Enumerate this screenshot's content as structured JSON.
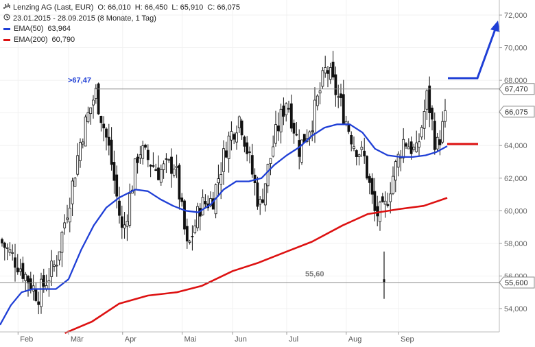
{
  "header": {
    "line1": {
      "name": "Lenzing AG (Last, EUR)",
      "O": "O: 66,010",
      "H": "H: 66,450",
      "L": "L: 65,910",
      "C": "C: 66,075"
    },
    "line2": "23.01.2015 - 28.09.2015 (8 Monate, 1 Tag)",
    "ema50_label": "EMA(50)",
    "ema50_value": "63,964",
    "ema200_label": "EMA(200)",
    "ema200_value": "60,790"
  },
  "colors": {
    "ema50": "#1f3fd6",
    "ema200": "#dd1111",
    "candle": "#111111",
    "resistance_label": "#1f3fd6",
    "support_label": "#777777"
  },
  "chart_data": {
    "type": "candlestick",
    "xlabel": "",
    "ylabel": "",
    "x_range": [
      "2015-01-23",
      "2015-09-28"
    ],
    "ylim": [
      52.6,
      72.9
    ],
    "y_ticks": [
      "72,000",
      "70,000",
      "68,000",
      "66,000",
      "64,000",
      "62,000",
      "60,000",
      "58,000",
      "56,000",
      "54,000"
    ],
    "y_tick_values": [
      72,
      70,
      68,
      66,
      64,
      62,
      60,
      58,
      56,
      54
    ],
    "x_ticks": [
      "Feb",
      "Mär",
      "Apr",
      "Mai",
      "Jun",
      "Jul",
      "Aug",
      "Sep"
    ],
    "x_tick_dates": [
      "2015-02-02",
      "2015-03-02",
      "2015-04-01",
      "2015-05-04",
      "2015-06-01",
      "2015-07-01",
      "2015-08-03",
      "2015-09-01"
    ],
    "last_close": {
      "value": 66.075,
      "label": "66,075"
    },
    "levels": [
      {
        "value": 67.47,
        "label": ">67,47",
        "tag": "67,470"
      },
      {
        "value": 55.6,
        "label": "55,60",
        "tag": "55,600"
      }
    ],
    "ohlc_anchors": {
      "dates": [
        "2015-01-23",
        "2015-02-03",
        "2015-02-13",
        "2015-02-23",
        "2015-03-04",
        "2015-03-09",
        "2015-03-17",
        "2015-03-25",
        "2015-04-01",
        "2015-04-10",
        "2015-04-21",
        "2015-04-30",
        "2015-05-07",
        "2015-05-14",
        "2015-05-21",
        "2015-05-29",
        "2015-06-05",
        "2015-06-16",
        "2015-06-24",
        "2015-07-01",
        "2015-07-08",
        "2015-07-15",
        "2015-07-23",
        "2015-07-30",
        "2015-08-07",
        "2015-08-13",
        "2015-08-19",
        "2015-08-24",
        "2015-08-28",
        "2015-09-04",
        "2015-09-11",
        "2015-09-17",
        "2015-09-22",
        "2015-09-28"
      ],
      "closes": [
        58.2,
        56.6,
        54.8,
        56.8,
        61.5,
        64.5,
        67.3,
        63.5,
        58.5,
        63.8,
        62.4,
        62.9,
        57.5,
        60.3,
        60.7,
        64.2,
        65.8,
        60.2,
        64.3,
        66.9,
        63.8,
        65.5,
        68.8,
        66.8,
        64.2,
        63.2,
        59.8,
        59.9,
        61.8,
        64.4,
        63.5,
        67.1,
        63.8,
        66.075
      ]
    },
    "series": [
      {
        "name": "EMA(50)",
        "dates": [
          "2015-01-23",
          "2015-01-29",
          "2015-02-04",
          "2015-02-10",
          "2015-02-16",
          "2015-02-23",
          "2015-03-02",
          "2015-03-09",
          "2015-03-16",
          "2015-03-23",
          "2015-03-30",
          "2015-04-08",
          "2015-04-15",
          "2015-04-22",
          "2015-04-29",
          "2015-05-06",
          "2015-05-13",
          "2015-05-20",
          "2015-05-27",
          "2015-06-03",
          "2015-06-10",
          "2015-06-17",
          "2015-06-24",
          "2015-07-01",
          "2015-07-08",
          "2015-07-15",
          "2015-07-22",
          "2015-07-29",
          "2015-08-05",
          "2015-08-12",
          "2015-08-19",
          "2015-08-26",
          "2015-09-02",
          "2015-09-09",
          "2015-09-16",
          "2015-09-22",
          "2015-09-28"
        ],
        "values": [
          53.0,
          54.2,
          55.0,
          55.2,
          55.2,
          55.2,
          55.8,
          57.6,
          59.1,
          60.2,
          60.8,
          61.3,
          61.2,
          60.7,
          60.3,
          60.0,
          59.9,
          60.4,
          61.3,
          61.8,
          61.8,
          62.0,
          62.8,
          63.4,
          63.9,
          64.6,
          65.1,
          65.3,
          65.3,
          64.8,
          63.8,
          63.4,
          63.3,
          63.3,
          63.4,
          63.6,
          63.964
        ]
      },
      {
        "name": "EMA(200)",
        "dates": [
          "2015-02-28",
          "2015-03-15",
          "2015-03-30",
          "2015-04-15",
          "2015-05-01",
          "2015-05-15",
          "2015-06-01",
          "2015-06-15",
          "2015-07-01",
          "2015-07-15",
          "2015-08-01",
          "2015-08-15",
          "2015-09-01",
          "2015-09-15",
          "2015-09-28"
        ],
        "values": [
          52.5,
          53.2,
          54.3,
          54.8,
          55.0,
          55.4,
          56.3,
          56.8,
          57.5,
          58.1,
          59.1,
          59.8,
          60.1,
          60.3,
          60.79
        ]
      }
    ]
  }
}
